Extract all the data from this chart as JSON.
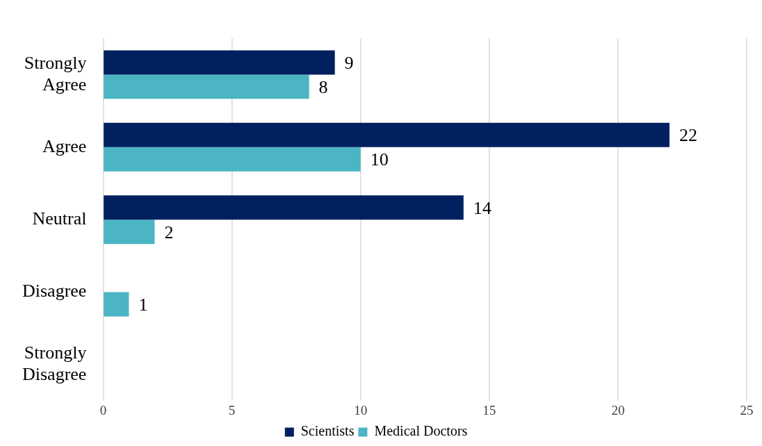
{
  "chart_data": {
    "type": "bar",
    "orientation": "horizontal",
    "categories": [
      "Strongly Agree",
      "Agree",
      "Neutral",
      "Disagree",
      "Strongly Disagree"
    ],
    "series": [
      {
        "name": "Scientists",
        "color": "#002060",
        "values": [
          9,
          22,
          14,
          null,
          null
        ],
        "value_labels": [
          "9",
          "22",
          "14",
          null,
          null
        ]
      },
      {
        "name": "Medical Doctors",
        "color": "#4bb5c4",
        "values": [
          8,
          10,
          2,
          1,
          null
        ],
        "value_labels": [
          "8",
          "10",
          "2",
          "1",
          null
        ]
      }
    ],
    "xlim": [
      0,
      25
    ],
    "xticks": [
      0,
      5,
      10,
      15,
      20,
      25
    ],
    "grid": "x",
    "legend": "bottom"
  }
}
